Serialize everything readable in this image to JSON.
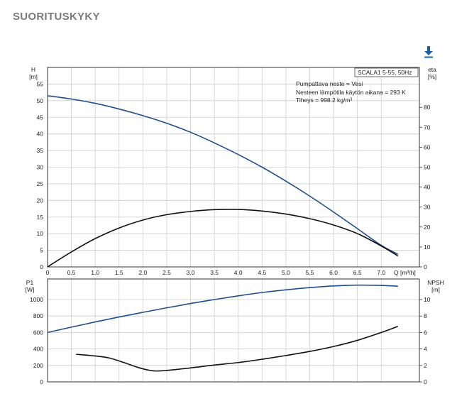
{
  "page": {
    "title": "SUORITUSKYKY"
  },
  "icons": {
    "download": "download-icon"
  },
  "colors": {
    "blue": "#1f4e8c",
    "black": "#111111",
    "grid": "#cccccc"
  },
  "chart_data": [
    {
      "type": "line",
      "panel": "upper",
      "grid": true,
      "info_box": {
        "model": "SCALA1 5-55, 50Hz",
        "lines": [
          "Pumpattava neste = Vesi",
          "Nesteen lämpötila käytön aikana = 293 K",
          "Tiheys = 998.2 kg/m³"
        ]
      },
      "x": {
        "label": "Q [m³/h]",
        "range": [
          0,
          7.8
        ],
        "ticks": [
          "0",
          "0.5",
          "1.0",
          "1.5",
          "2.0",
          "2.5",
          "3.0",
          "3.5",
          "4.0",
          "4.5",
          "5.0",
          "5.5",
          "6.0",
          "6.5",
          "7.0"
        ]
      },
      "y_left": {
        "label_top": "H",
        "label_unit": "[m]",
        "range": [
          0,
          60
        ],
        "ticks": [
          "0",
          "5",
          "10",
          "15",
          "20",
          "25",
          "30",
          "35",
          "40",
          "45",
          "50",
          "55"
        ]
      },
      "y_right": {
        "label_top": "eta",
        "label_unit": "[%]",
        "range": [
          0,
          100
        ],
        "ticks": [
          "0",
          "10",
          "20",
          "30",
          "40",
          "50",
          "60",
          "70",
          "80"
        ]
      },
      "series": [
        {
          "axis": "left",
          "color": "#1f4e8c",
          "points": [
            [
              0,
              51.5
            ],
            [
              0.5,
              50.5
            ],
            [
              1.0,
              49.2
            ],
            [
              1.5,
              47.5
            ],
            [
              2.0,
              45.5
            ],
            [
              2.5,
              43.2
            ],
            [
              3.0,
              40.5
            ],
            [
              3.5,
              37.3
            ],
            [
              4.0,
              33.8
            ],
            [
              4.5,
              30.0
            ],
            [
              5.0,
              25.8
            ],
            [
              5.5,
              21.3
            ],
            [
              6.0,
              16.5
            ],
            [
              6.5,
              11.5
            ],
            [
              7.0,
              6.5
            ],
            [
              7.35,
              3.8
            ]
          ]
        },
        {
          "axis": "right",
          "color": "#111111",
          "points": [
            [
              0,
              0
            ],
            [
              0.5,
              7.5
            ],
            [
              1.0,
              14.2
            ],
            [
              1.5,
              19.5
            ],
            [
              2.0,
              23.5
            ],
            [
              2.5,
              26.2
            ],
            [
              3.0,
              27.8
            ],
            [
              3.5,
              28.7
            ],
            [
              4.0,
              28.8
            ],
            [
              4.5,
              28.0
            ],
            [
              5.0,
              26.5
            ],
            [
              5.5,
              24.2
            ],
            [
              6.0,
              21.0
            ],
            [
              6.5,
              16.7
            ],
            [
              7.0,
              10.5
            ],
            [
              7.35,
              5.5
            ]
          ]
        }
      ]
    },
    {
      "type": "line",
      "panel": "lower",
      "grid": true,
      "x": {
        "range": [
          0,
          7.8
        ]
      },
      "y_left": {
        "label_top": "P1",
        "label_unit": "[W]",
        "range": [
          0,
          1250
        ],
        "ticks": [
          "0",
          "200",
          "400",
          "600",
          "800",
          "1000"
        ]
      },
      "y_right": {
        "label_top": "NPSH",
        "label_unit": "[m]",
        "range": [
          0,
          12.5
        ],
        "ticks": [
          "0",
          "2",
          "4",
          "6",
          "8",
          "10"
        ]
      },
      "series": [
        {
          "axis": "left",
          "color": "#1f4e8c",
          "points": [
            [
              0,
              600
            ],
            [
              0.5,
              665
            ],
            [
              1.0,
              728
            ],
            [
              1.5,
              788
            ],
            [
              2.0,
              845
            ],
            [
              2.5,
              900
            ],
            [
              3.0,
              952
            ],
            [
              3.5,
              1000
            ],
            [
              4.0,
              1045
            ],
            [
              4.5,
              1085
            ],
            [
              5.0,
              1118
            ],
            [
              5.5,
              1145
            ],
            [
              6.0,
              1165
            ],
            [
              6.5,
              1175
            ],
            [
              7.0,
              1172
            ],
            [
              7.35,
              1162
            ]
          ]
        },
        {
          "axis": "right",
          "color": "#111111",
          "points": [
            [
              0.6,
              3.35
            ],
            [
              1.0,
              3.15
            ],
            [
              1.3,
              2.9
            ],
            [
              1.6,
              2.35
            ],
            [
              1.9,
              1.75
            ],
            [
              2.15,
              1.4
            ],
            [
              2.4,
              1.35
            ],
            [
              3.0,
              1.7
            ],
            [
              3.5,
              2.05
            ],
            [
              4.0,
              2.35
            ],
            [
              4.5,
              2.75
            ],
            [
              5.0,
              3.2
            ],
            [
              5.5,
              3.7
            ],
            [
              6.0,
              4.3
            ],
            [
              6.5,
              5.05
            ],
            [
              7.0,
              6.0
            ],
            [
              7.35,
              6.75
            ]
          ]
        }
      ]
    }
  ]
}
